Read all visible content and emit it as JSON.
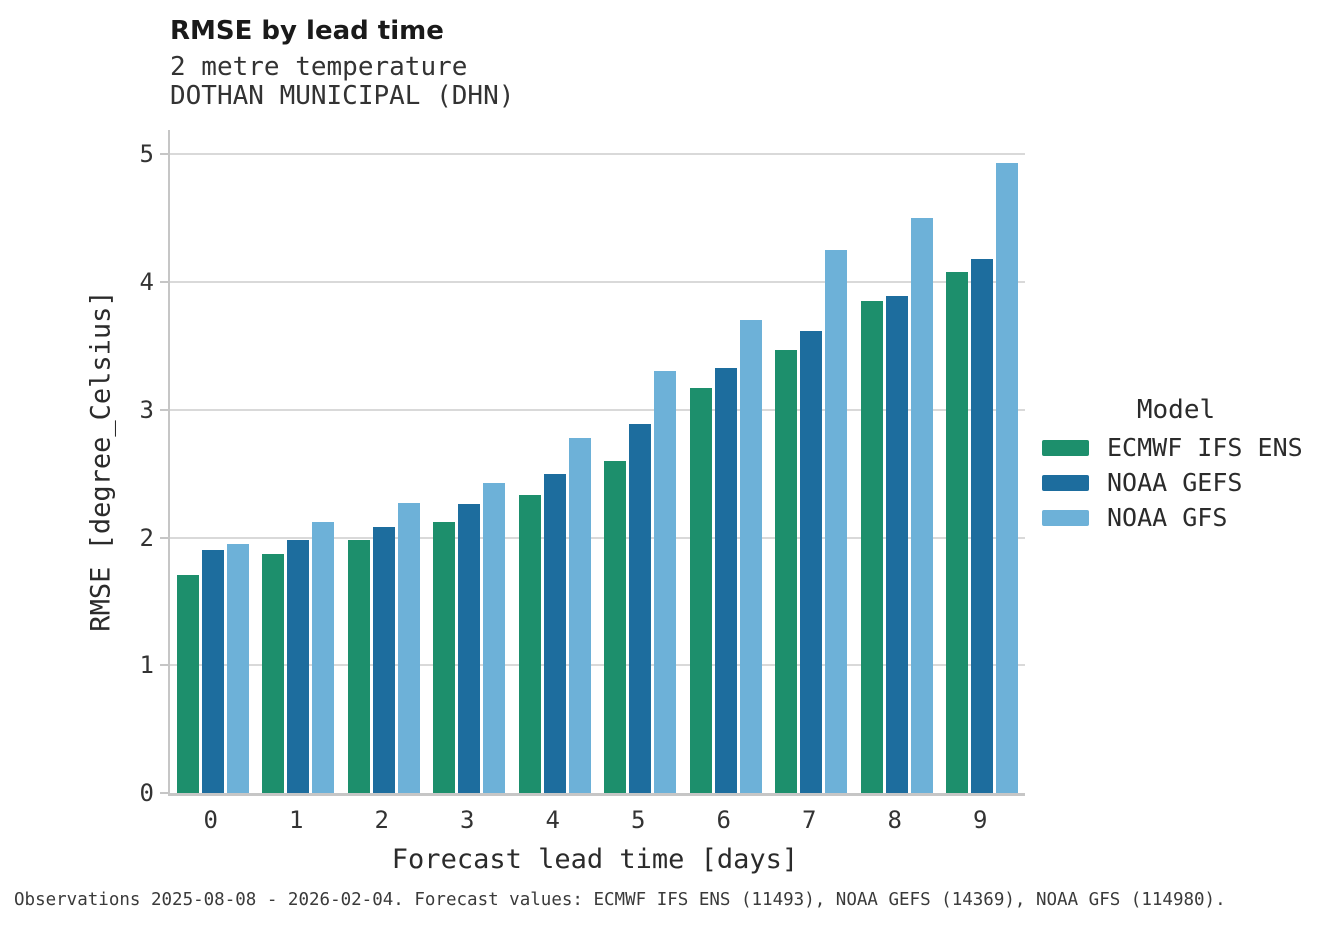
{
  "header": {
    "title": "RMSE by lead time",
    "subtitle_variable": "2 metre temperature",
    "subtitle_station": "DOTHAN MUNICIPAL (DHN)"
  },
  "legend": {
    "title": "Model"
  },
  "footer": {
    "text": "Observations 2025-08-08 - 2026-02-04. Forecast values: ECMWF IFS ENS (11493), NOAA GEFS (14369), NOAA GFS (114980)."
  },
  "chart_data": {
    "type": "bar",
    "title": "RMSE by lead time",
    "subtitle": "2 metre temperature",
    "station": "DOTHAN MUNICIPAL (DHN)",
    "categories": [
      "0",
      "1",
      "2",
      "3",
      "4",
      "5",
      "6",
      "7",
      "8",
      "9"
    ],
    "series": [
      {
        "name": "ECMWF IFS ENS",
        "color": "#1D8F6C",
        "values": [
          1.71,
          1.87,
          1.98,
          2.12,
          2.33,
          2.6,
          3.17,
          3.47,
          3.85,
          4.08
        ]
      },
      {
        "name": "NOAA GEFS",
        "color": "#1D6D9E",
        "values": [
          1.9,
          1.98,
          2.08,
          2.26,
          2.5,
          2.89,
          3.33,
          3.62,
          3.89,
          4.18
        ]
      },
      {
        "name": "NOAA GFS",
        "color": "#6DB1D8",
        "values": [
          1.95,
          2.12,
          2.27,
          2.43,
          2.78,
          3.3,
          3.7,
          4.25,
          4.5,
          4.93
        ]
      }
    ],
    "xlabel": "Forecast lead time [days]",
    "ylabel": "RMSE [degree_Celsius]",
    "ylim": [
      0,
      5.19
    ],
    "yticks": [
      0,
      1,
      2,
      3,
      4,
      5
    ],
    "grid": "horizontal",
    "legend_position": "right",
    "legend_title": "Model"
  }
}
